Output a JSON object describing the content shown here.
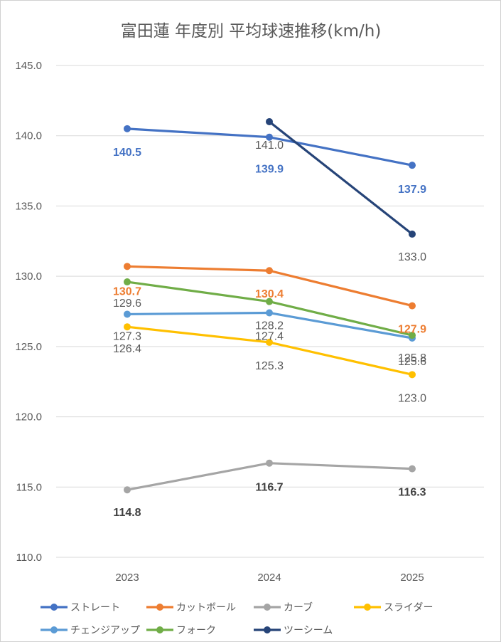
{
  "chart_data": {
    "type": "line",
    "title": "富田蓮 年度別 平均球速推移(km/h)",
    "xlabel": "",
    "ylabel": "",
    "x": [
      "2023",
      "2024",
      "2025"
    ],
    "ylim": [
      110,
      145
    ],
    "yticks": [
      "110.0",
      "115.0",
      "120.0",
      "125.0",
      "130.0",
      "135.0",
      "140.0",
      "145.0"
    ],
    "grid": true,
    "legend": "bottom",
    "series": [
      {
        "name": "ストレート",
        "color": "#4472C4",
        "values": [
          140.5,
          139.9,
          137.9
        ],
        "labels": [
          "140.5",
          "139.9",
          "137.9"
        ],
        "label_color": "#4472C4",
        "bold": true
      },
      {
        "name": "カットボール",
        "color": "#ED7D31",
        "values": [
          130.7,
          130.4,
          127.9
        ],
        "labels": [
          "130.7",
          "130.4",
          "127.9"
        ],
        "label_color": "#ED7D31",
        "bold": true
      },
      {
        "name": "カーブ",
        "color": "#A5A5A5",
        "values": [
          114.8,
          116.7,
          116.3
        ],
        "labels": [
          "114.8",
          "116.7",
          "116.3"
        ],
        "label_color": "#404040",
        "bold": true
      },
      {
        "name": "スライダー",
        "color": "#FFC000",
        "values": [
          126.4,
          125.3,
          123.0
        ],
        "labels": [
          "126.4",
          "125.3",
          "123.0"
        ],
        "label_color": "#595959",
        "bold": false
      },
      {
        "name": "チェンジアップ",
        "color": "#5B9BD5",
        "values": [
          127.3,
          127.4,
          125.6
        ],
        "labels": [
          "127.3",
          "127.4",
          "125.6"
        ],
        "label_color": "#595959",
        "bold": false
      },
      {
        "name": "フォーク",
        "color": "#70AD47",
        "values": [
          129.6,
          128.2,
          125.8
        ],
        "labels": [
          "129.6",
          "128.2",
          "125.8"
        ],
        "label_color": "#595959",
        "bold": false
      },
      {
        "name": "ツーシーム",
        "color": "#264478",
        "values": [
          null,
          141.0,
          133.0
        ],
        "labels": [
          null,
          "141.0",
          "133.0"
        ],
        "label_color": "#595959",
        "bold": false
      }
    ]
  }
}
